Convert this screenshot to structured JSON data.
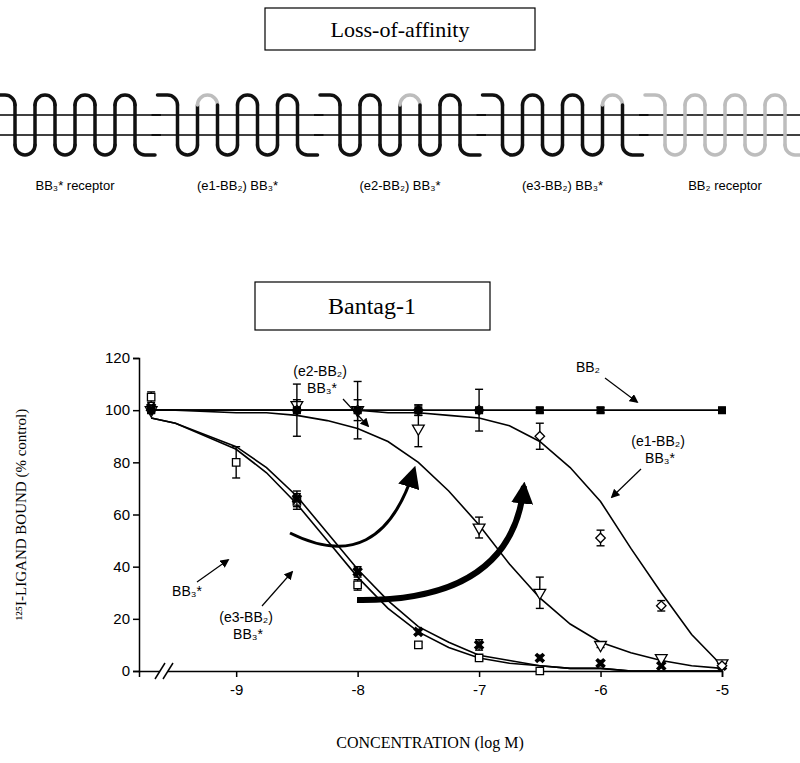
{
  "diagram": {
    "title": "Loss-of-affinity",
    "receptors": [
      {
        "label": "BB₃* receptor"
      },
      {
        "label": "(e1-BB₂) BB₃*"
      },
      {
        "label": "(e2-BB₂) BB₃*"
      },
      {
        "label": "(e3-BB₂) BB₃*"
      },
      {
        "label": "BB₂ receptor"
      }
    ]
  },
  "chart_data": {
    "type": "scatter",
    "title": "Bantag-1",
    "xlabel": "CONCENTRATION (log M)",
    "ylabel": "¹²⁵I-LIGAND BOUND (% control)",
    "x": [
      -9.7,
      -9,
      -8.5,
      -8,
      -7.5,
      -7,
      -6.5,
      -6,
      -5.5,
      -5
    ],
    "fit_x": [
      -9.7,
      -9.5,
      -9,
      -8.75,
      -8.5,
      -8.25,
      -8,
      -7.75,
      -7.5,
      -7.25,
      -7,
      -6.75,
      -6.5,
      -6.25,
      -6,
      -5.75,
      -5.5,
      -5.25,
      -5
    ],
    "xlim": [
      -9.8,
      -5
    ],
    "xticks": [
      -9,
      -8,
      -7,
      -6,
      -5
    ],
    "ylim": [
      0,
      120
    ],
    "yticks": [
      0,
      20,
      40,
      60,
      80,
      100,
      120
    ],
    "grid": false,
    "series": [
      {
        "name": "BB₃*",
        "color": "#000000",
        "marker": "square-open",
        "values": [
          105,
          80,
          65,
          33,
          10,
          5,
          0,
          null,
          null,
          null
        ],
        "errors": [
          2,
          6,
          3,
          2,
          1,
          1,
          0,
          null,
          null,
          null
        ],
        "fit": [
          97,
          95,
          85,
          76,
          64,
          50,
          36,
          24,
          15,
          9,
          5,
          3,
          2,
          1,
          1,
          0,
          0,
          0,
          0
        ]
      },
      {
        "name": "(e3-BB₂) BB₃*",
        "color": "#000000",
        "marker": "x",
        "values": [
          101,
          null,
          66,
          38,
          15,
          10,
          5,
          3,
          2,
          2
        ],
        "errors": [
          1,
          null,
          3,
          2,
          1,
          2,
          1,
          1,
          null,
          null
        ],
        "fit": [
          97,
          95,
          86,
          78,
          67,
          53,
          39,
          27,
          17,
          11,
          6,
          4,
          2,
          1,
          1,
          0,
          0,
          0,
          0
        ]
      },
      {
        "name": "(e2-BB₂) BB₃*",
        "color": "#000000",
        "marker": "triangle-down-open",
        "values": [
          100,
          null,
          102,
          100,
          93,
          55,
          30,
          10,
          5,
          3
        ],
        "errors": [
          1,
          null,
          2,
          4,
          7,
          4,
          6,
          1,
          null,
          null
        ],
        "fit": [
          100,
          100,
          99,
          99,
          98,
          96,
          93,
          88,
          80,
          69,
          56,
          41,
          28,
          18,
          11,
          7,
          4,
          2,
          1
        ]
      },
      {
        "name": "(e1-BB₂) BB₃*",
        "color": "#000000",
        "marker": "diamond-open",
        "values": [
          100,
          null,
          100,
          100,
          100,
          100,
          90,
          51,
          25,
          2
        ],
        "errors": [
          1,
          null,
          10,
          11,
          2,
          8,
          5,
          3,
          2,
          null
        ],
        "fit": [
          100,
          100,
          100,
          100,
          100,
          100,
          100,
          99,
          99,
          98,
          97,
          94,
          88,
          78,
          65,
          47,
          30,
          14,
          2
        ]
      },
      {
        "name": "BB₂",
        "color": "#000000",
        "marker": "square",
        "values": [
          100,
          null,
          100,
          100,
          100,
          100,
          100,
          100,
          null,
          100
        ],
        "errors": [
          1,
          null,
          1,
          1,
          2,
          1,
          1,
          1,
          null,
          1
        ],
        "fit": [
          100,
          100,
          100,
          100,
          100,
          100,
          100,
          100,
          100,
          100,
          100,
          100,
          100,
          100,
          100,
          100,
          100,
          100,
          100
        ]
      }
    ]
  }
}
